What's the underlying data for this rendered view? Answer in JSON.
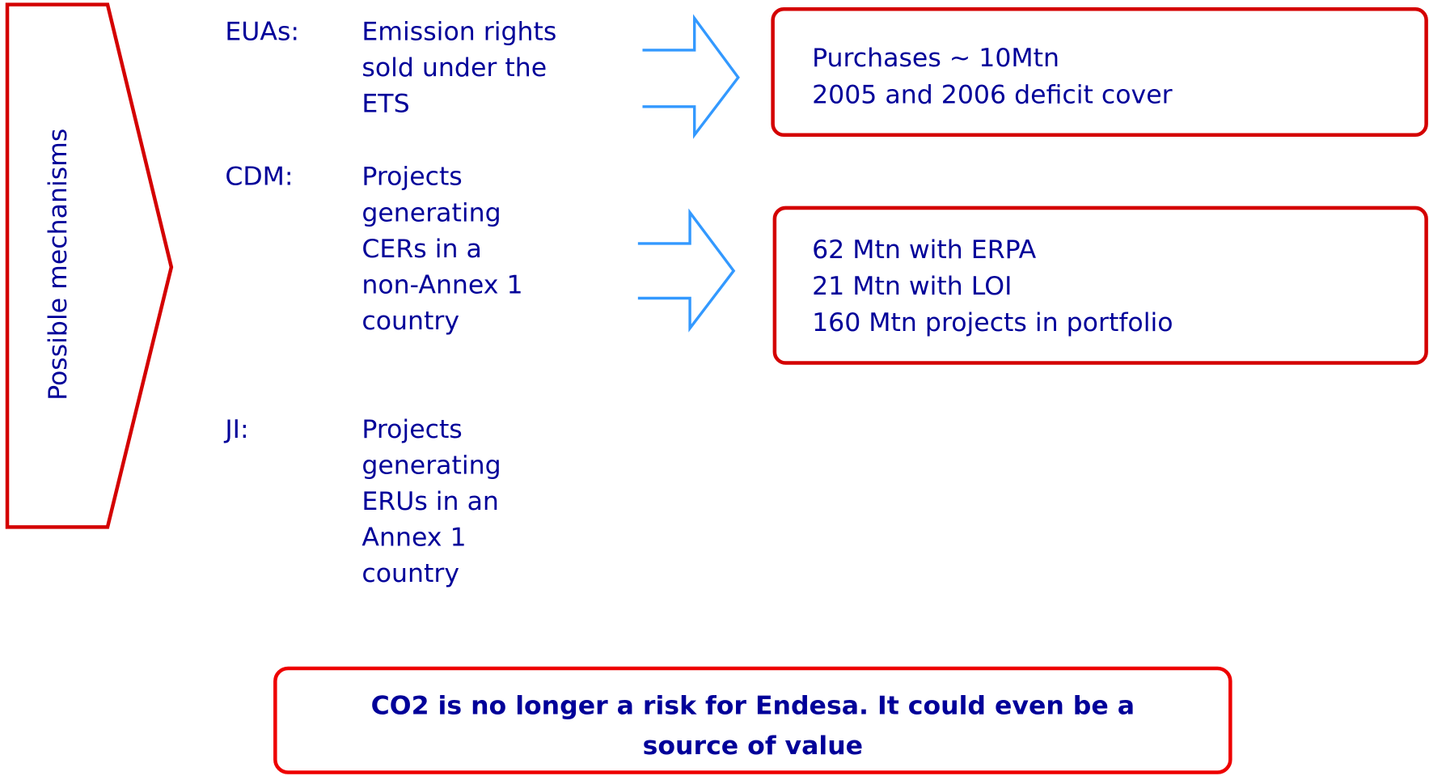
{
  "side_label": "Possible mechanisms",
  "mechanisms": [
    {
      "term": "EUAs:",
      "lines": [
        "Emission rights",
        "sold under the",
        "ETS"
      ]
    },
    {
      "term": "CDM:",
      "lines": [
        "Projects",
        "generating",
        "CERs in a",
        "non-Annex 1",
        "country"
      ]
    },
    {
      "term": "JI:",
      "lines": [
        "Projects",
        "generating",
        "ERUs in an",
        "Annex 1",
        "country"
      ]
    }
  ],
  "results": [
    {
      "lines": [
        "Purchases ~ 10Mtn",
        "2005 and 2006 deficit cover"
      ]
    },
    {
      "lines": [
        "62 Mtn with ERPA",
        "21 Mtn with LOI",
        "160 Mtn projects in portfolio"
      ]
    }
  ],
  "conclusion": {
    "lines": [
      "CO2 is no longer a risk for Endesa. It could even be a",
      "source of value"
    ]
  }
}
